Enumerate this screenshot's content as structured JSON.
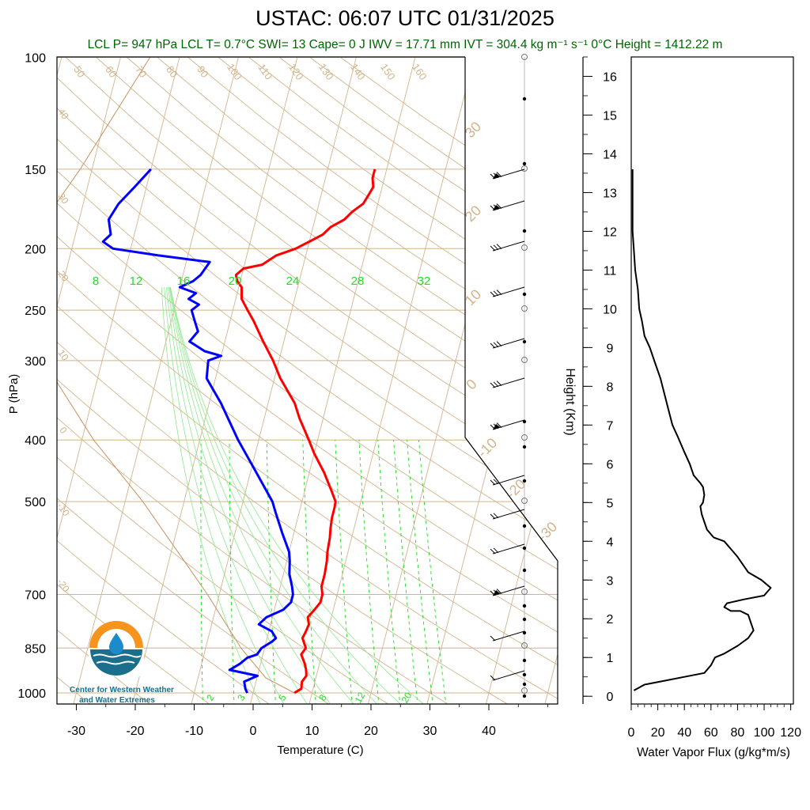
{
  "title": "USTAC: 06:07 UTC 01/31/2025",
  "stats_line": "LCL P= 947 hPa  LCL T= 0.7°C  SWI= 13  Cape= 0 J  IWV = 17.71 mm  IVT = 304.4 kg m⁻¹ s⁻¹   0°C Height = 1412.22 m",
  "logo": {
    "text_line1": "Center for Western Weather",
    "text_line2": "and Water Extremes"
  },
  "colors": {
    "temperature": "#ff0000",
    "dewpoint": "#0000ff",
    "skewt_lines": "#d2b48c",
    "mixing_ratio": "#00dd00",
    "stats": "#006400"
  },
  "chart_data": [
    {
      "type": "line",
      "name": "skew-t",
      "xlabel": "Temperature (C)",
      "ylabel": "P (hPa)",
      "x_ticks": [
        -30,
        -20,
        -10,
        0,
        10,
        20,
        30,
        40
      ],
      "y_ticks": [
        100,
        150,
        200,
        250,
        300,
        400,
        500,
        700,
        850,
        1000
      ],
      "xlim": [
        -34,
        50
      ],
      "ylim": [
        1050,
        100
      ],
      "y_scale": "log",
      "mixing_ratio_labels_top": [
        "8",
        "12",
        "16",
        "20",
        "24",
        "28",
        "32"
      ],
      "mixing_ratio_labels_bottom": [
        "2",
        "3",
        "5",
        "8",
        "12",
        "20"
      ],
      "theta_labels": [
        "50",
        "60",
        "70",
        "80",
        "90",
        "100",
        "110",
        "120",
        "130",
        "140",
        "150",
        "160"
      ],
      "left_labels": [
        "40",
        "30",
        "20",
        "10",
        "0",
        "-10",
        "-20"
      ],
      "diag_labels": [
        "30",
        "20",
        "10",
        "0",
        "-10",
        "-20",
        "-30"
      ],
      "temperature": [
        [
          1000,
          7
        ],
        [
          985,
          8
        ],
        [
          960,
          7.8
        ],
        [
          940,
          8.3
        ],
        [
          920,
          8
        ],
        [
          900,
          7.5
        ],
        [
          870,
          6.5
        ],
        [
          850,
          7
        ],
        [
          820,
          6
        ],
        [
          800,
          6.3
        ],
        [
          780,
          6.5
        ],
        [
          760,
          6
        ],
        [
          740,
          6.8
        ],
        [
          720,
          7.5
        ],
        [
          700,
          7.5
        ],
        [
          680,
          7
        ],
        [
          650,
          7
        ],
        [
          620,
          6.8
        ],
        [
          600,
          6.5
        ],
        [
          570,
          6.3
        ],
        [
          550,
          6
        ],
        [
          530,
          5.8
        ],
        [
          510,
          5.8
        ],
        [
          500,
          5.7
        ],
        [
          480,
          4.5
        ],
        [
          450,
          2.5
        ],
        [
          420,
          0
        ],
        [
          400,
          -1.5
        ],
        [
          370,
          -4
        ],
        [
          350,
          -5.5
        ],
        [
          320,
          -9
        ],
        [
          300,
          -11
        ],
        [
          280,
          -13.5
        ],
        [
          260,
          -16
        ],
        [
          250,
          -17.5
        ],
        [
          240,
          -19
        ],
        [
          230,
          -19.5
        ],
        [
          225,
          -20.5
        ],
        [
          220,
          -21
        ],
        [
          215,
          -20
        ],
        [
          212,
          -17
        ],
        [
          205,
          -15
        ],
        [
          200,
          -12
        ],
        [
          195,
          -10
        ],
        [
          190,
          -8
        ],
        [
          185,
          -7
        ],
        [
          180,
          -5
        ],
        [
          175,
          -4
        ],
        [
          170,
          -2.5
        ],
        [
          165,
          -2
        ],
        [
          160,
          -1.5
        ],
        [
          155,
          -2
        ],
        [
          150,
          -2
        ]
      ],
      "dewpoint": [
        [
          1000,
          -1
        ],
        [
          985,
          -1.5
        ],
        [
          960,
          -2
        ],
        [
          940,
          0
        ],
        [
          920,
          -5
        ],
        [
          900,
          -3.5
        ],
        [
          880,
          -2.5
        ],
        [
          870,
          -1
        ],
        [
          850,
          -0.5
        ],
        [
          830,
          1
        ],
        [
          820,
          1.5
        ],
        [
          800,
          0.5
        ],
        [
          780,
          -2
        ],
        [
          760,
          -1
        ],
        [
          740,
          1.5
        ],
        [
          720,
          2.5
        ],
        [
          700,
          2.5
        ],
        [
          680,
          2
        ],
        [
          650,
          1
        ],
        [
          620,
          0.5
        ],
        [
          600,
          0
        ],
        [
          560,
          -2
        ],
        [
          520,
          -4
        ],
        [
          500,
          -5
        ],
        [
          450,
          -9
        ],
        [
          400,
          -13.5
        ],
        [
          350,
          -18
        ],
        [
          320,
          -21.5
        ],
        [
          300,
          -22
        ],
        [
          295,
          -20
        ],
        [
          290,
          -23
        ],
        [
          280,
          -26
        ],
        [
          270,
          -25
        ],
        [
          260,
          -26
        ],
        [
          250,
          -27
        ],
        [
          245,
          -26
        ],
        [
          240,
          -28
        ],
        [
          235,
          -27
        ],
        [
          230,
          -30
        ],
        [
          225,
          -28
        ],
        [
          220,
          -27
        ],
        [
          210,
          -26
        ],
        [
          205,
          -35
        ],
        [
          200,
          -43
        ],
        [
          195,
          -45
        ],
        [
          190,
          -44
        ],
        [
          180,
          -45
        ],
        [
          170,
          -44
        ],
        [
          160,
          -42
        ],
        [
          150,
          -40
        ]
      ]
    },
    {
      "type": "line",
      "name": "water-vapor-flux",
      "xlabel": "Water Vapor Flux (g/kg*m/s)",
      "ylabel": "Height (Km)",
      "x_ticks": [
        0,
        20,
        40,
        60,
        80,
        100,
        120
      ],
      "y_ticks": [
        0,
        1,
        2,
        3,
        4,
        5,
        6,
        7,
        8,
        9,
        10,
        11,
        12,
        13,
        14,
        15,
        16
      ],
      "xlim": [
        0,
        122
      ],
      "ylim": [
        -0.2,
        16.5
      ],
      "points": [
        [
          2,
          0.15
        ],
        [
          10,
          0.3
        ],
        [
          25,
          0.4
        ],
        [
          40,
          0.5
        ],
        [
          55,
          0.6
        ],
        [
          60,
          0.8
        ],
        [
          63,
          1
        ],
        [
          70,
          1.1
        ],
        [
          80,
          1.3
        ],
        [
          88,
          1.5
        ],
        [
          92,
          1.7
        ],
        [
          90,
          1.9
        ],
        [
          88,
          2.1
        ],
        [
          82,
          2.2
        ],
        [
          75,
          2.2
        ],
        [
          70,
          2.3
        ],
        [
          72,
          2.4
        ],
        [
          85,
          2.5
        ],
        [
          100,
          2.6
        ],
        [
          105,
          2.8
        ],
        [
          98,
          3
        ],
        [
          93,
          3.1
        ],
        [
          88,
          3.2
        ],
        [
          84,
          3.4
        ],
        [
          80,
          3.6
        ],
        [
          75,
          3.8
        ],
        [
          70,
          4
        ],
        [
          62,
          4.1
        ],
        [
          57,
          4.3
        ],
        [
          55,
          4.5
        ],
        [
          53,
          4.7
        ],
        [
          52,
          4.9
        ],
        [
          54,
          5
        ],
        [
          55,
          5.2
        ],
        [
          54,
          5.4
        ],
        [
          52,
          5.5
        ],
        [
          47,
          5.7
        ],
        [
          44,
          6
        ],
        [
          40,
          6.3
        ],
        [
          35,
          6.7
        ],
        [
          31,
          7
        ],
        [
          28,
          7.4
        ],
        [
          25,
          7.8
        ],
        [
          22,
          8.2
        ],
        [
          18,
          8.6
        ],
        [
          14,
          9
        ],
        [
          10,
          9.3
        ],
        [
          8,
          9.7
        ],
        [
          6,
          10
        ],
        [
          5,
          10.5
        ],
        [
          3,
          11
        ],
        [
          2,
          11.5
        ],
        [
          1,
          12
        ],
        [
          1,
          13
        ],
        [
          1,
          13.6
        ]
      ]
    }
  ]
}
